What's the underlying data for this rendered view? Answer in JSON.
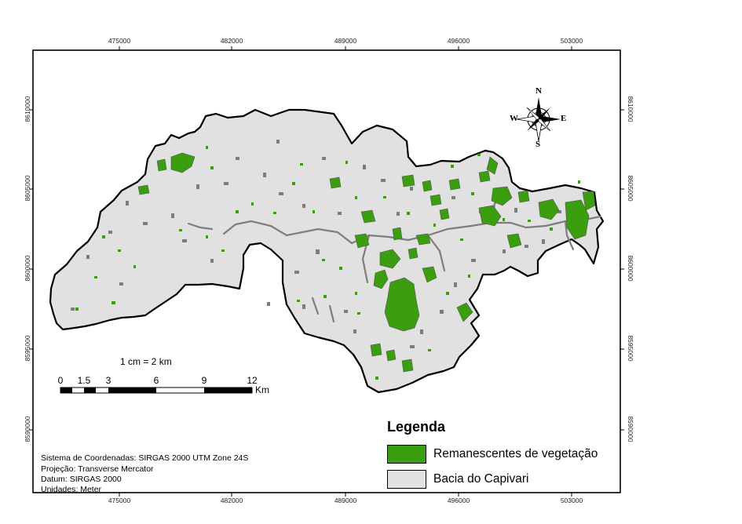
{
  "map": {
    "x_ticks": [
      "475000",
      "482000",
      "489000",
      "496000",
      "503000"
    ],
    "y_ticks": [
      "8610000",
      "8605000",
      "8600000",
      "8595000",
      "8590000"
    ],
    "scale_ratio": "1 cm = 2 km",
    "scale_labels": [
      "0",
      "1.5",
      "3",
      "6",
      "9",
      "12"
    ],
    "scale_unit": "Km",
    "legend": {
      "title": "Legenda",
      "items": [
        {
          "label": "Remanescentes de vegetação",
          "color": "#3a9e0f"
        },
        {
          "label": "Bacia do Capivari",
          "color": "#e1e1e1"
        }
      ]
    },
    "info": [
      "Sistema de Coordenadas: SIRGAS 2000 UTM Zone 24S",
      "Projeção: Transverse Mercator",
      "Datum: SIRGAS 2000",
      "Unidades: Meter"
    ],
    "compass": {
      "n": "N",
      "s": "S",
      "e": "E",
      "w": "W"
    },
    "colors": {
      "basin": "#e1e1e1",
      "vegetation": "#3a9e0f",
      "drainage": "#7d7d7d",
      "frame": "#000000"
    }
  }
}
